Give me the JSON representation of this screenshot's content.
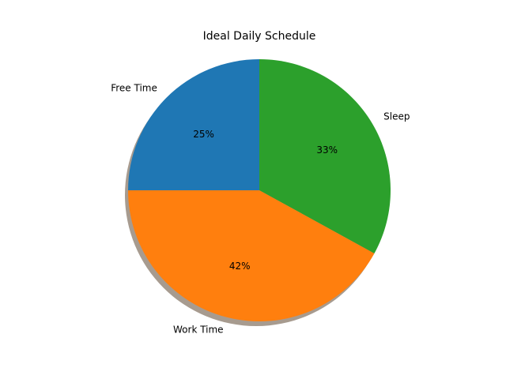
{
  "chart_data": {
    "type": "pie",
    "title": "Ideal Daily Schedule",
    "slices": [
      {
        "label": "Sleep",
        "value": 33,
        "pct_label": "33%",
        "color": "#2ca02c"
      },
      {
        "label": "Work Time",
        "value": 42,
        "pct_label": "42%",
        "color": "#ff7f0e"
      },
      {
        "label": "Free Time",
        "value": 25,
        "pct_label": "25%",
        "color": "#1f77b4"
      }
    ],
    "start_angle_deg": 90,
    "direction": "clockwise",
    "shadow": true,
    "legend": "none"
  }
}
